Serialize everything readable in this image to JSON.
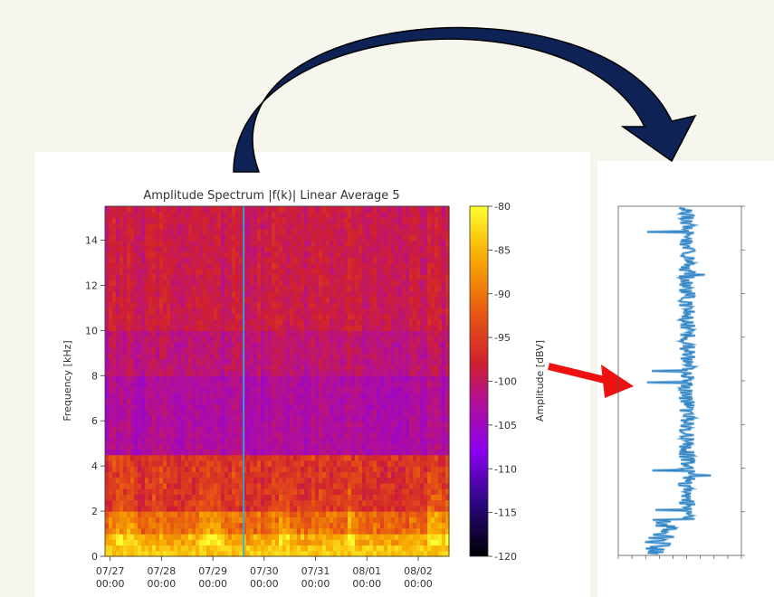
{
  "chart_data": [
    {
      "type": "heatmap",
      "title": "Amplitude Spectrum |f(k)| Linear Average 5",
      "ylabel": "Frequency [kHz]",
      "ylim": [
        0,
        15.5
      ],
      "y_ticks": [
        "0",
        "2",
        "4",
        "6",
        "8",
        "10",
        "12",
        "14"
      ],
      "x_ticks": [
        {
          "date": "07/27",
          "time": "00:00"
        },
        {
          "date": "07/28",
          "time": "00:00"
        },
        {
          "date": "07/29",
          "time": "00:00"
        },
        {
          "date": "07/30",
          "time": "00:00"
        },
        {
          "date": "07/31",
          "time": "00:00"
        },
        {
          "date": "08/01",
          "time": "00:00"
        },
        {
          "date": "08/02",
          "time": "00:00"
        }
      ],
      "xlim_days": [
        26.9,
        33.6
      ],
      "selected_time_day": 29.6,
      "colorbar": {
        "label": "Amplitude [dBV]",
        "range": [
          -120,
          -80
        ],
        "ticks": [
          "-80",
          "-85",
          "-90",
          "-95",
          "-100",
          "-105",
          "-110",
          "-115",
          "-120"
        ]
      },
      "band_levels_dBV": [
        {
          "freq_kHz": [
            0,
            1
          ],
          "level": -86
        },
        {
          "freq_kHz": [
            1,
            2
          ],
          "level": -91
        },
        {
          "freq_kHz": [
            2,
            4.5
          ],
          "level": -96
        },
        {
          "freq_kHz": [
            4.5,
            8
          ],
          "level": -103
        },
        {
          "freq_kHz": [
            8,
            10
          ],
          "level": -101
        },
        {
          "freq_kHz": [
            10,
            15.5
          ],
          "level": -99
        }
      ],
      "colors": {
        "selection_line": "#20b6e6"
      }
    },
    {
      "type": "line",
      "orientation": "vertical",
      "note": "rotated amplitude spectrum at selected time; labels too small to read",
      "colors": {
        "line": "#2c7bb6"
      }
    }
  ],
  "colors": {
    "curved_arrow": "#0e2255",
    "pointer_arrow": "#ee1111"
  },
  "icons": [
    "curved-arrow-icon",
    "red-arrow-icon"
  ]
}
